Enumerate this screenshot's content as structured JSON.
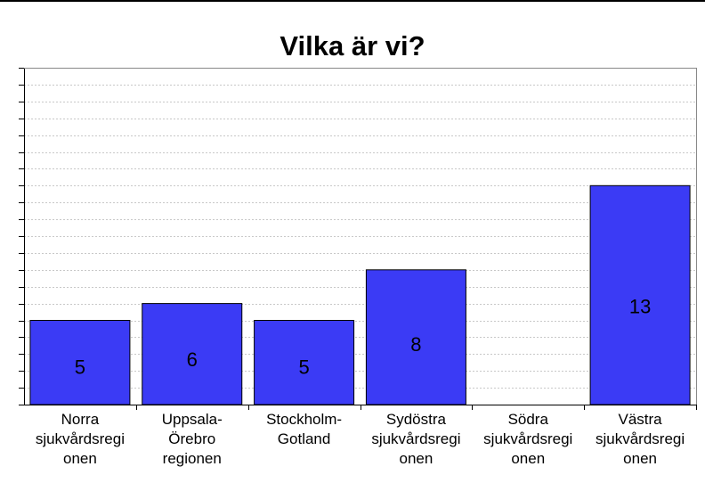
{
  "chart_data": {
    "type": "bar",
    "title": "Vilka är vi?",
    "categories": [
      [
        "Norra",
        "sjukvårdsregi",
        "onen"
      ],
      [
        "Uppsala-",
        "Örebro",
        "regionen"
      ],
      [
        "Stockholm-",
        "Gotland"
      ],
      [
        "Sydöstra",
        "sjukvårdsregi",
        "onen"
      ],
      [
        "Södra",
        "sjukvårdsregi",
        "onen"
      ],
      [
        "Västra",
        "sjukvårdsregi",
        "onen"
      ]
    ],
    "values": [
      5,
      6,
      5,
      8,
      0,
      13
    ],
    "data_labels": [
      "5",
      "6",
      "5",
      "8",
      "",
      "13"
    ],
    "ylim": [
      0,
      20
    ],
    "grid": true,
    "legend": "none",
    "colors": {
      "bar": "#3b3bf5",
      "bar_border": "#000000",
      "grid": "#c8c8c8"
    }
  }
}
